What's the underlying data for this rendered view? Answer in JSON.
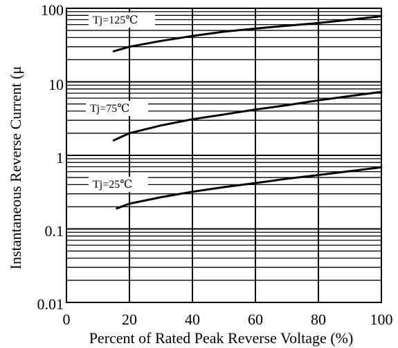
{
  "chart_data": {
    "type": "line",
    "title": "",
    "xlabel": "Percent of Rated Peak Reverse Voltage (%)",
    "ylabel": "Instantaneous Reverse Current (μ",
    "x_ticks": [
      "0",
      "20",
      "40",
      "60",
      "80",
      "100"
    ],
    "y_ticks": [
      "0.01",
      "0.1",
      "1",
      "10",
      "100"
    ],
    "xlim": [
      0,
      100
    ],
    "ylim": [
      0.01,
      100
    ],
    "y_scale": "log",
    "grid": true,
    "line_color": "#000000",
    "series": [
      {
        "name": "Tj=125℃",
        "x": [
          15,
          20,
          30,
          40,
          50,
          60,
          70,
          80,
          90,
          100
        ],
        "y": [
          26,
          30,
          36,
          42,
          48,
          53,
          58,
          63,
          70,
          78
        ]
      },
      {
        "name": "Tj=75℃",
        "x": [
          15,
          20,
          30,
          40,
          50,
          60,
          70,
          80,
          90,
          100
        ],
        "y": [
          1.6,
          2.0,
          2.55,
          3.1,
          3.6,
          4.2,
          4.8,
          5.6,
          6.4,
          7.3
        ]
      },
      {
        "name": "Tj=25℃",
        "x": [
          16,
          20,
          30,
          40,
          50,
          60,
          70,
          80,
          90,
          100
        ],
        "y": [
          0.19,
          0.22,
          0.27,
          0.32,
          0.37,
          0.42,
          0.48,
          0.54,
          0.61,
          0.69
        ]
      }
    ]
  }
}
